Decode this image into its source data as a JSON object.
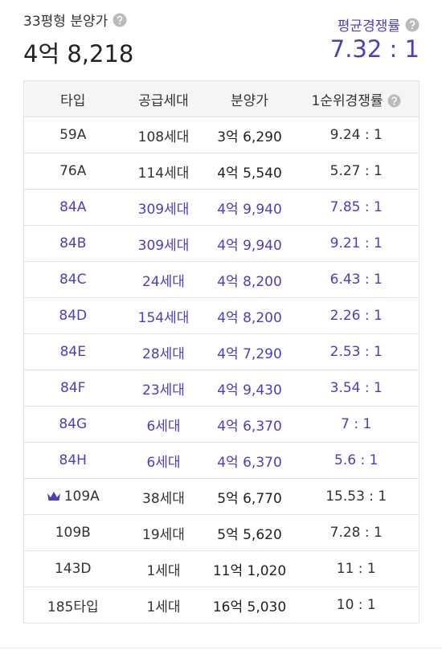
{
  "header": {
    "label": "33평형 분양가",
    "price": "4억 8,218",
    "avg_label": "평균경쟁률",
    "avg_value": "7.32 : 1"
  },
  "table": {
    "columns": [
      "타입",
      "공급세대",
      "분양가",
      "1순위경쟁률"
    ],
    "rows": [
      [
        "59A",
        "108세대",
        "3억 6,290",
        "9.24 : 1"
      ],
      [
        "76A",
        "114세대",
        "4억 5,540",
        "5.27 : 1"
      ],
      [
        "84A",
        "309세대",
        "4억 9,940",
        "7.85 : 1"
      ],
      [
        "84B",
        "309세대",
        "4억 9,940",
        "9.21 : 1"
      ],
      [
        "84C",
        "24세대",
        "4억 8,200",
        "6.43 : 1"
      ],
      [
        "84D",
        "154세대",
        "4억 8,200",
        "2.26 : 1"
      ],
      [
        "84E",
        "28세대",
        "4억 7,290",
        "2.53 : 1"
      ],
      [
        "84F",
        "23세대",
        "4억 9,430",
        "3.54 : 1"
      ],
      [
        "84G",
        "6세대",
        "4억 6,370",
        "7 : 1"
      ],
      [
        "84H",
        "6세대",
        "4억 6,370",
        "5.6 : 1"
      ],
      [
        "109A",
        "38세대",
        "5억 6,770",
        "15.53 : 1"
      ],
      [
        "109B",
        "19세대",
        "5억 5,620",
        "7.28 : 1"
      ],
      [
        "143D",
        "1세대",
        "11억 1,020",
        "11 : 1"
      ],
      [
        "185타입",
        "1세대",
        "16억 5,030",
        "10 : 1"
      ]
    ]
  }
}
